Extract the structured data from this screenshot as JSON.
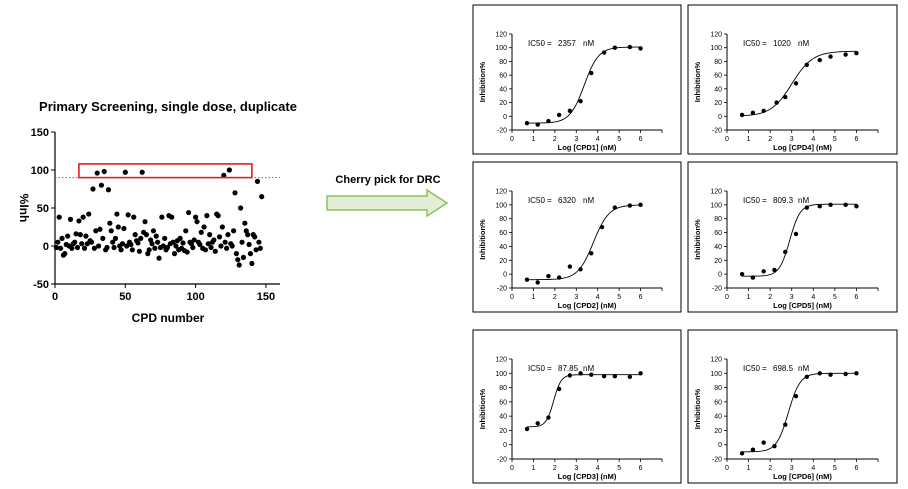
{
  "arrow": {
    "label": "Cherry pick for DRC"
  },
  "primary": {
    "title": "Primary Screening, single dose, duplicate",
    "type": "scatter",
    "xlabel": "CPD number",
    "ylabel": "%Inh",
    "xlim": [
      0,
      160
    ],
    "ylim": [
      -50,
      150
    ],
    "xticks": [
      0,
      50,
      100,
      150
    ],
    "yticks": [
      -50,
      0,
      50,
      100,
      150
    ],
    "threshold": 90,
    "hits_box": {
      "x": [
        17,
        140
      ],
      "y": [
        90,
        108
      ]
    },
    "points": [
      [
        1,
        -2
      ],
      [
        2,
        5
      ],
      [
        3,
        38
      ],
      [
        4,
        -3
      ],
      [
        5,
        10
      ],
      [
        6,
        -12
      ],
      [
        7,
        -10
      ],
      [
        8,
        2
      ],
      [
        9,
        13
      ],
      [
        10,
        0
      ],
      [
        11,
        35
      ],
      [
        12,
        -3
      ],
      [
        13,
        3
      ],
      [
        14,
        5
      ],
      [
        15,
        16
      ],
      [
        16,
        -2
      ],
      [
        17,
        33
      ],
      [
        18,
        15
      ],
      [
        19,
        3
      ],
      [
        20,
        38
      ],
      [
        21,
        -3
      ],
      [
        22,
        13
      ],
      [
        23,
        3
      ],
      [
        24,
        42
      ],
      [
        25,
        7
      ],
      [
        26,
        5
      ],
      [
        27,
        75
      ],
      [
        28,
        -3
      ],
      [
        29,
        20
      ],
      [
        30,
        96
      ],
      [
        31,
        0
      ],
      [
        32,
        22
      ],
      [
        33,
        80
      ],
      [
        34,
        10
      ],
      [
        35,
        98
      ],
      [
        36,
        -5
      ],
      [
        37,
        -2
      ],
      [
        38,
        74
      ],
      [
        39,
        30
      ],
      [
        40,
        20
      ],
      [
        41,
        5
      ],
      [
        42,
        -2
      ],
      [
        43,
        10
      ],
      [
        44,
        42
      ],
      [
        45,
        25
      ],
      [
        46,
        0
      ],
      [
        47,
        -5
      ],
      [
        48,
        3
      ],
      [
        49,
        23
      ],
      [
        50,
        97
      ],
      [
        51,
        0
      ],
      [
        52,
        41
      ],
      [
        53,
        5
      ],
      [
        54,
        2
      ],
      [
        55,
        -5
      ],
      [
        56,
        38
      ],
      [
        57,
        15
      ],
      [
        58,
        7
      ],
      [
        59,
        4
      ],
      [
        60,
        -7
      ],
      [
        61,
        10
      ],
      [
        62,
        97
      ],
      [
        63,
        18
      ],
      [
        64,
        32
      ],
      [
        65,
        15
      ],
      [
        66,
        -10
      ],
      [
        67,
        -5
      ],
      [
        68,
        8
      ],
      [
        69,
        3
      ],
      [
        70,
        20
      ],
      [
        71,
        -3
      ],
      [
        72,
        13
      ],
      [
        73,
        5
      ],
      [
        74,
        -16
      ],
      [
        75,
        -2
      ],
      [
        76,
        38
      ],
      [
        77,
        0
      ],
      [
        78,
        10
      ],
      [
        79,
        -5
      ],
      [
        80,
        -2
      ],
      [
        81,
        40
      ],
      [
        82,
        3
      ],
      [
        83,
        38
      ],
      [
        84,
        5
      ],
      [
        85,
        -10
      ],
      [
        86,
        0
      ],
      [
        87,
        7
      ],
      [
        88,
        -5
      ],
      [
        89,
        10
      ],
      [
        90,
        -3
      ],
      [
        91,
        4
      ],
      [
        92,
        -6
      ],
      [
        93,
        20
      ],
      [
        94,
        -8
      ],
      [
        95,
        44
      ],
      [
        96,
        5
      ],
      [
        97,
        3
      ],
      [
        98,
        -2
      ],
      [
        99,
        8
      ],
      [
        100,
        38
      ],
      [
        101,
        32
      ],
      [
        102,
        5
      ],
      [
        103,
        2
      ],
      [
        104,
        18
      ],
      [
        105,
        -3
      ],
      [
        106,
        25
      ],
      [
        107,
        -5
      ],
      [
        108,
        40
      ],
      [
        109,
        3
      ],
      [
        110,
        15
      ],
      [
        111,
        -2
      ],
      [
        112,
        5
      ],
      [
        113,
        8
      ],
      [
        114,
        -7
      ],
      [
        115,
        42
      ],
      [
        116,
        40
      ],
      [
        117,
        12
      ],
      [
        118,
        0
      ],
      [
        119,
        25
      ],
      [
        120,
        93
      ],
      [
        121,
        5
      ],
      [
        122,
        -3
      ],
      [
        123,
        15
      ],
      [
        124,
        100
      ],
      [
        125,
        3
      ],
      [
        126,
        0
      ],
      [
        127,
        20
      ],
      [
        128,
        70
      ],
      [
        129,
        -10
      ],
      [
        130,
        -18
      ],
      [
        131,
        -25
      ],
      [
        132,
        50
      ],
      [
        133,
        5
      ],
      [
        134,
        -15
      ],
      [
        135,
        30
      ],
      [
        136,
        20
      ],
      [
        137,
        15
      ],
      [
        138,
        2
      ],
      [
        139,
        -10
      ],
      [
        140,
        -23
      ],
      [
        141,
        15
      ],
      [
        142,
        12
      ],
      [
        143,
        -5
      ],
      [
        144,
        85
      ],
      [
        145,
        5
      ],
      [
        146,
        -3
      ],
      [
        147,
        65
      ]
    ]
  },
  "drc": [
    {
      "ic50_label": "IC50 =",
      "ic50_value": "2357",
      "ic50_unit": "nM",
      "xlabel": "Log [CPD1] (nM)",
      "ylabel": "Inhibition%",
      "logic50": 3.372,
      "bottom": -10,
      "top": 101,
      "hill": 1.3,
      "points": [
        [
          0.7,
          -10
        ],
        [
          1.2,
          -12
        ],
        [
          1.7,
          -7
        ],
        [
          2.2,
          2
        ],
        [
          2.7,
          8
        ],
        [
          3.2,
          22
        ],
        [
          3.7,
          63
        ],
        [
          4.3,
          93
        ],
        [
          4.8,
          100
        ],
        [
          5.5,
          101
        ],
        [
          6.0,
          99
        ]
      ]
    },
    {
      "ic50_label": "IC50 =",
      "ic50_value": "1020",
      "ic50_unit": "nM",
      "xlabel": "Log [CPD4] (nM)",
      "ylabel": "Inhibition%",
      "logic50": 3.009,
      "bottom": 0,
      "top": 95,
      "hill": 0.9,
      "points": [
        [
          0.7,
          2
        ],
        [
          1.2,
          5
        ],
        [
          1.7,
          8
        ],
        [
          2.3,
          20
        ],
        [
          2.7,
          28
        ],
        [
          3.2,
          48
        ],
        [
          3.7,
          75
        ],
        [
          4.3,
          82
        ],
        [
          4.8,
          87
        ],
        [
          5.5,
          90
        ],
        [
          6.0,
          92
        ]
      ]
    },
    {
      "ic50_label": "IC50 =",
      "ic50_value": "6320",
      "ic50_unit": "nM",
      "xlabel": "Log [CPD2] (nM)",
      "ylabel": "Inhibition%",
      "logic50": 3.801,
      "bottom": -8,
      "top": 100,
      "hill": 1.2,
      "points": [
        [
          0.7,
          -8
        ],
        [
          1.2,
          -12
        ],
        [
          1.7,
          -3
        ],
        [
          2.2,
          -5
        ],
        [
          2.7,
          11
        ],
        [
          3.2,
          7
        ],
        [
          3.7,
          30
        ],
        [
          4.2,
          68
        ],
        [
          4.8,
          96
        ],
        [
          5.5,
          99
        ],
        [
          6.0,
          100
        ]
      ]
    },
    {
      "ic50_label": "IC50 =",
      "ic50_value": "809.3",
      "ic50_unit": "nM",
      "xlabel": "Log [CPD5] (nM)",
      "ylabel": "Inhibition%",
      "logic50": 2.908,
      "bottom": -3,
      "top": 101,
      "hill": 1.8,
      "points": [
        [
          0.7,
          0
        ],
        [
          1.2,
          -5
        ],
        [
          1.7,
          4
        ],
        [
          2.2,
          6
        ],
        [
          2.7,
          32
        ],
        [
          3.2,
          58
        ],
        [
          3.7,
          96
        ],
        [
          4.3,
          98
        ],
        [
          4.8,
          100
        ],
        [
          5.5,
          100
        ],
        [
          6.0,
          98
        ]
      ]
    },
    {
      "ic50_label": "IC50 =",
      "ic50_value": "87.85",
      "ic50_unit": "nM",
      "xlabel": "Log [CPD3] (nM)",
      "ylabel": "Inhibition%",
      "logic50": 1.944,
      "bottom": 25,
      "top": 98,
      "hill": 2.5,
      "points": [
        [
          0.7,
          22
        ],
        [
          1.2,
          30
        ],
        [
          1.7,
          38
        ],
        [
          2.2,
          78
        ],
        [
          2.7,
          97
        ],
        [
          3.2,
          100
        ],
        [
          3.7,
          98
        ],
        [
          4.3,
          96
        ],
        [
          4.8,
          96
        ],
        [
          5.5,
          95
        ],
        [
          6.0,
          100
        ]
      ]
    },
    {
      "ic50_label": "IC50 =",
      "ic50_value": "698.5",
      "ic50_unit": "nM",
      "xlabel": "Log [CPD6] (nM)",
      "ylabel": "Inhibition%",
      "logic50": 2.844,
      "bottom": -10,
      "top": 100,
      "hill": 1.6,
      "points": [
        [
          0.7,
          -12
        ],
        [
          1.2,
          -7
        ],
        [
          1.7,
          3
        ],
        [
          2.2,
          -2
        ],
        [
          2.7,
          28
        ],
        [
          3.2,
          68
        ],
        [
          3.7,
          95
        ],
        [
          4.3,
          100
        ],
        [
          4.8,
          98
        ],
        [
          5.5,
          99
        ],
        [
          6.0,
          100
        ]
      ]
    }
  ],
  "drc_axes": {
    "xlim": [
      0,
      7
    ],
    "xticks": [
      0,
      1,
      2,
      3,
      4,
      5,
      6,
      7
    ],
    "xtick_labels": [
      "0",
      "1",
      "2",
      "3",
      "4",
      "5",
      "6"
    ],
    "ylim": [
      -20,
      120
    ],
    "yticks": [
      -20,
      0,
      20,
      40,
      60,
      80,
      100,
      120
    ]
  }
}
